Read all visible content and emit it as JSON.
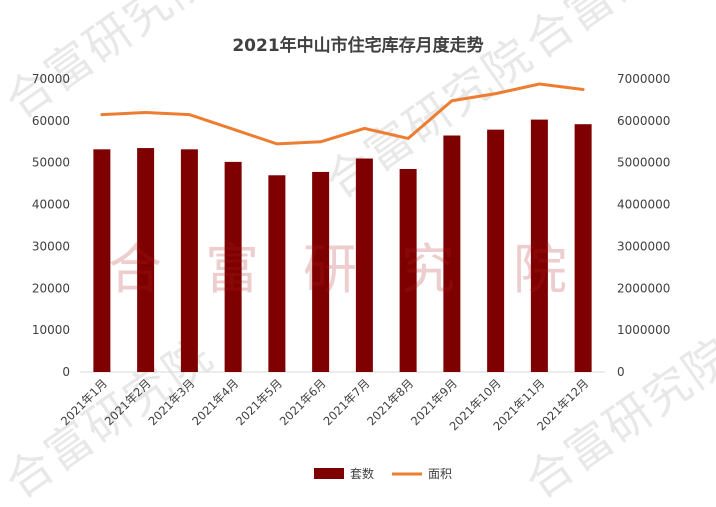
{
  "watermark": {
    "text": "合富研究院",
    "chars": [
      "合",
      "富",
      "研",
      "究",
      "院"
    ]
  },
  "chart_data": {
    "type": "bar+line",
    "title": "2021年中山市住宅库存月度走势",
    "categories": [
      "2021年1月",
      "2021年2月",
      "2021年3月",
      "2021年4月",
      "2021年5月",
      "2021年6月",
      "2021年7月",
      "2021年8月",
      "2021年9月",
      "2021年10月",
      "2021年11月",
      "2021年12月"
    ],
    "series": [
      {
        "name": "套数",
        "type": "bar",
        "axis": "left",
        "color": "#7f0000",
        "values": [
          53200,
          53500,
          53200,
          50200,
          47000,
          47800,
          51000,
          48500,
          56500,
          57900,
          60300,
          59200
        ]
      },
      {
        "name": "面积",
        "type": "line",
        "axis": "right",
        "color": "#ed7d31",
        "values": [
          6150000,
          6200000,
          6150000,
          5800000,
          5450000,
          5500000,
          5820000,
          5580000,
          6480000,
          6650000,
          6880000,
          6750000
        ]
      }
    ],
    "y_left": {
      "min": 0,
      "max": 70000,
      "ticks": [
        0,
        10000,
        20000,
        30000,
        40000,
        50000,
        60000,
        70000
      ]
    },
    "y_right": {
      "min": 0,
      "max": 7000000,
      "ticks": [
        0,
        1000000,
        2000000,
        3000000,
        4000000,
        5000000,
        6000000,
        7000000
      ]
    },
    "grid": false,
    "legend_position": "bottom-center"
  }
}
